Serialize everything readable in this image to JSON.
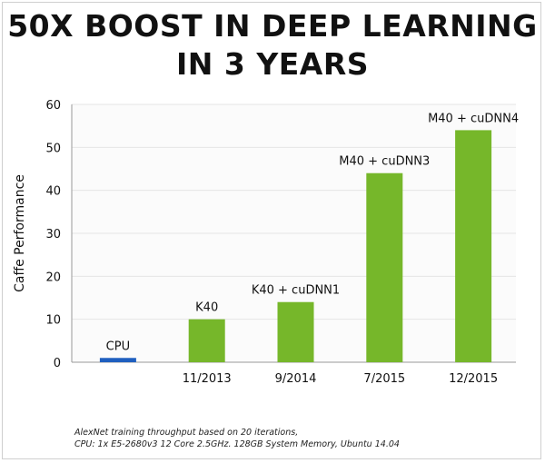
{
  "title_lines": [
    "50X BOOST IN DEEP LEARNING",
    "IN 3 YEARS"
  ],
  "footnote_lines": [
    "AlexNet training throughput based on 20 iterations,",
    "CPU: 1x E5-2680v3 12 Core 2.5GHz. 128GB System Memory, Ubuntu 14.04"
  ],
  "colors": {
    "bar": "#76b72a",
    "cpu_bar": "#1f5fbf",
    "grid": "#e6e6e6"
  },
  "chart_data": {
    "type": "bar",
    "title": "50X BOOST IN DEEP LEARNING IN 3 YEARS",
    "ylabel": "Caffe Performance",
    "xlabel": "",
    "ylim": [
      0,
      60
    ],
    "yticks": [
      0,
      10,
      20,
      30,
      40,
      50,
      60
    ],
    "grid": true,
    "categories": [
      "",
      "11/2013",
      "9/2014",
      "7/2015",
      "12/2015"
    ],
    "bar_labels": [
      "CPU",
      "K40",
      "K40 + cuDNN1",
      "M40 + cuDNN3",
      "M40 + cuDNN4"
    ],
    "values": [
      1,
      10,
      14,
      44,
      54
    ]
  }
}
